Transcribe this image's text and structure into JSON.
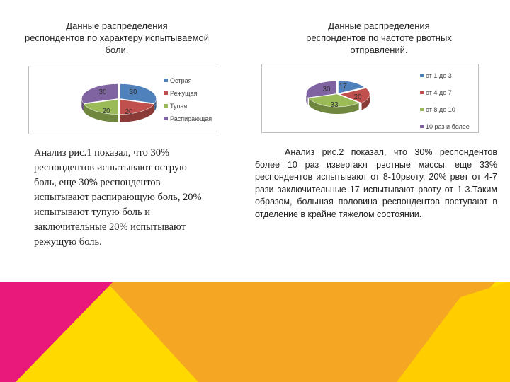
{
  "slide": {
    "left_title": "Данные распределения\nреспондентов по характеру испытываемой\nболи.",
    "right_title": "Данные распределения\nреспондентов по частоте рвотных\nотправлений.",
    "left_text": "Анализ рис.1 показал, что 30% респондентов испытывают острую боль, еще 30% респондентов испытывают распирающую боль, 20% испытывают тупую боль и заключительные 20% испытывают режущую боль.",
    "right_text": "Анализ рис.2 показал, что 30% респондентов более 10 раз извергают рвотные массы, еще 33% респондентов испытывают от 8-10рвоту, 20% рвет от 4-7 рази заключительные 17 испытывают рвоту от 1-3.Таким образом, большая половина респондентов поступают в отделение в крайне тяжелом состоянии.",
    "decor_colors": [
      "#e8197a",
      "#f5c800",
      "#f39c12",
      "#ffd900"
    ]
  },
  "chart_data": [
    {
      "type": "pie",
      "title": "",
      "categories": [
        "Острая",
        "Режущая",
        "Тупая",
        "Распирающая"
      ],
      "values": [
        30,
        20,
        20,
        30
      ],
      "colors": [
        "#4f81bd",
        "#c0504d",
        "#9bbb59",
        "#8064a2"
      ],
      "legend": "right"
    },
    {
      "type": "pie",
      "title": "",
      "categories": [
        "от 1 до 3",
        "от 4 до 7",
        "от 8 до 10",
        "10 раз и более"
      ],
      "values": [
        17,
        20,
        33,
        30
      ],
      "colors": [
        "#4f81bd",
        "#c0504d",
        "#9bbb59",
        "#8064a2"
      ],
      "legend": "right"
    }
  ]
}
